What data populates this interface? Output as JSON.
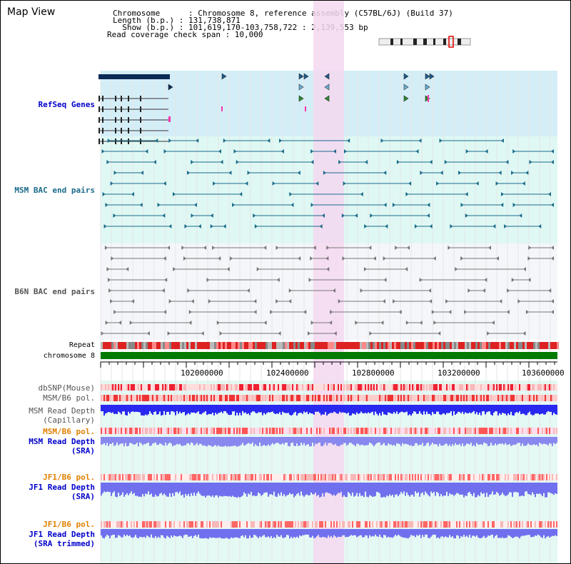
{
  "title": "Map View",
  "info": {
    "chromosome": "Chromosome      : Chromosome 8, reference assembly (C57BL/6J) (Build 37)",
    "length": "Length (b.p.) : 131,738,871",
    "show": "  Show (b.p.) : 101,619,170-103,758,722 : 2,139,553 bp",
    "coverage": "Read coverage check span : 10,000"
  },
  "tracks": {
    "refseq": "RefSeq Genes",
    "msm_bac": "MSM BAC end pairs",
    "b6n_bac": "B6N BAC end pairs",
    "repeat": "Repeat",
    "chromosome": "chromosome 8",
    "dbsnp": "dbSNP(Mouse)",
    "msm_pol": "MSM/B6 pol.",
    "msm_depth_cap1": "MSM Read Depth",
    "msm_depth_cap2": "(Capillary)",
    "msm_pol2": "MSM/B6 pol.",
    "msm_depth_sra1": "MSM Read Depth",
    "msm_depth_sra2": "(SRA)",
    "jf1_pol1": "JF1/B6 pol.",
    "jf1_depth_sra1": "JF1 Read Depth",
    "jf1_depth_sra2": "(SRA)",
    "jf1_pol2": "JF1/B6 pol.",
    "jf1_depth_trim1": "JF1 Read Depth",
    "jf1_depth_trim2": "(SRA trimmed)"
  },
  "axis": {
    "ticks": [
      "102000000",
      "102400000",
      "102800000",
      "103200000",
      "103600000"
    ]
  },
  "colors": {
    "highlight": "#f5d8f0",
    "refseq_bg": "#d4eef8",
    "msm_bg": "#dff8f4",
    "b6n_bg": "#f4f6fa",
    "chromosome_bar": "#007a00",
    "depth_blue": "#4040ff",
    "depth_light_blue": "#8080ff",
    "pol_red": "#e03030"
  }
}
